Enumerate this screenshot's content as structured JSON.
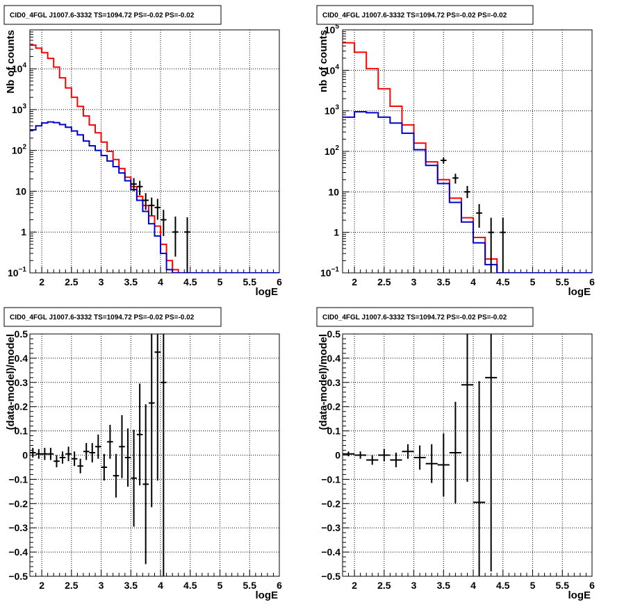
{
  "colors": {
    "data": "#000000",
    "model_total": "#ff0000",
    "model_component": "#0000cc"
  },
  "chart_data": [
    {
      "type": "line",
      "title": "CID0_4FGL J1007.6-3332 TS=1094.72 PS=-0.02 PS=-0.02",
      "xlabel": "logE",
      "ylabel": "Nb of counts",
      "xlim": [
        1.8,
        6.0
      ],
      "ylim": [
        0.1,
        90000
      ],
      "yscale": "log",
      "grid": true,
      "xticks": [
        "2",
        "2.5",
        "3",
        "3.5",
        "4",
        "4.5",
        "5",
        "5.5",
        "6"
      ],
      "yticks": [
        {
          "v": 0.1,
          "base": "10",
          "exp": "−1"
        },
        {
          "v": 1,
          "base": "1",
          "exp": ""
        },
        {
          "v": 10,
          "base": "10",
          "exp": ""
        },
        {
          "v": 100,
          "base": "10",
          "exp": "2"
        },
        {
          "v": 1000,
          "base": "10",
          "exp": "3"
        },
        {
          "v": 10000,
          "base": "10",
          "exp": "4"
        }
      ],
      "bin_edges": [
        1.8,
        1.9,
        2.0,
        2.1,
        2.2,
        2.3,
        2.4,
        2.5,
        2.6,
        2.7,
        2.8,
        2.9,
        3.0,
        3.1,
        3.2,
        3.3,
        3.4,
        3.5,
        3.6,
        3.7,
        3.8,
        3.9,
        4.0,
        4.1,
        4.2,
        4.3,
        4.4,
        4.5,
        4.6,
        4.7,
        4.8,
        4.9,
        5.0,
        5.1,
        5.2,
        5.3,
        5.4,
        5.5,
        5.6,
        5.7,
        5.8,
        5.9,
        6.0
      ],
      "series": [
        {
          "kind": "step",
          "color": "#ff0000",
          "values": [
            38000,
            32000,
            25000,
            18000,
            11000,
            6000,
            3400,
            2000,
            1200,
            700,
            420,
            270,
            160,
            95,
            60,
            36,
            22,
            13,
            7.5,
            4.5,
            2.5,
            1.4,
            0.5,
            0.2,
            0.12,
            0.1,
            0.1,
            0.1,
            0.1,
            0.1,
            0.1,
            0.1,
            0.1,
            0.1,
            0.1,
            0.1,
            0.1,
            0.1,
            0.1,
            0.1,
            0.1,
            0.1
          ]
        },
        {
          "kind": "step",
          "color": "#0000cc",
          "values": [
            320,
            400,
            470,
            500,
            480,
            430,
            370,
            300,
            240,
            170,
            130,
            100,
            75,
            55,
            40,
            28,
            18,
            11,
            6,
            3.2,
            1.6,
            0.8,
            0.3,
            0.12,
            0.1,
            0.1,
            0.1,
            0.1,
            0.1,
            0.1,
            0.1,
            0.1,
            0.1,
            0.1,
            0.1,
            0.1,
            0.1,
            0.1,
            0.1,
            0.1,
            0.1,
            0.1
          ]
        },
        {
          "kind": "points",
          "color": "#000000",
          "points": [
            {
              "x": 3.55,
              "y": 15,
              "lo": 10,
              "hi": 21
            },
            {
              "x": 3.65,
              "y": 13,
              "lo": 8,
              "hi": 18
            },
            {
              "x": 3.75,
              "y": 6,
              "lo": 3.5,
              "hi": 9
            },
            {
              "x": 3.85,
              "y": 4.5,
              "lo": 2.5,
              "hi": 7
            },
            {
              "x": 3.95,
              "y": 4,
              "lo": 2,
              "hi": 6.5
            },
            {
              "x": 4.05,
              "y": 2,
              "lo": 0.8,
              "hi": 3.5
            },
            {
              "x": 4.25,
              "y": 1,
              "lo": 0.25,
              "hi": 2.4
            },
            {
              "x": 4.45,
              "y": 1,
              "lo": 0.1,
              "hi": 2.3
            }
          ]
        }
      ]
    },
    {
      "type": "line",
      "title": "CID0_4FGL J1007.6-3332 TS=1094.72 PS=-0.02 PS=-0.02",
      "xlabel": "logE",
      "ylabel": "nb of counts",
      "xlim": [
        1.8,
        6.0
      ],
      "ylim": [
        0.1,
        100000
      ],
      "yscale": "log",
      "grid": true,
      "xticks": [
        "2",
        "2.5",
        "3",
        "3.5",
        "4",
        "4.5",
        "5",
        "5.5",
        "6"
      ],
      "yticks": [
        {
          "v": 0.1,
          "base": "10",
          "exp": "−1"
        },
        {
          "v": 1,
          "base": "1",
          "exp": ""
        },
        {
          "v": 10,
          "base": "10",
          "exp": ""
        },
        {
          "v": 100,
          "base": "10",
          "exp": "2"
        },
        {
          "v": 1000,
          "base": "10",
          "exp": "3"
        },
        {
          "v": 10000,
          "base": "10",
          "exp": "4"
        },
        {
          "v": 100000,
          "base": "10",
          "exp": "5"
        }
      ],
      "bin_edges": [
        1.8,
        2.0,
        2.2,
        2.4,
        2.6,
        2.8,
        3.0,
        3.2,
        3.4,
        3.6,
        3.8,
        4.0,
        4.2,
        4.4,
        4.6,
        4.8,
        5.0,
        5.2,
        5.4,
        5.6,
        5.8,
        6.0
      ],
      "series": [
        {
          "kind": "step",
          "color": "#ff0000",
          "values": [
            48000,
            28000,
            11000,
            3500,
            1300,
            450,
            160,
            55,
            20,
            7,
            2.3,
            0.75,
            0.22,
            0.1,
            0.1,
            0.1,
            0.1,
            0.1,
            0.1,
            0.1,
            0.1
          ]
        },
        {
          "kind": "step",
          "color": "#0000cc",
          "values": [
            700,
            950,
            900,
            700,
            500,
            280,
            110,
            45,
            16,
            5.5,
            1.8,
            0.55,
            0.16,
            0.1,
            0.1,
            0.1,
            0.1,
            0.1,
            0.1,
            0.1,
            0.1
          ]
        },
        {
          "kind": "points",
          "color": "#000000",
          "points": [
            {
              "x": 3.5,
              "y": 60,
              "lo": 50,
              "hi": 70
            },
            {
              "x": 3.7,
              "y": 22,
              "lo": 16,
              "hi": 28
            },
            {
              "x": 3.9,
              "y": 10,
              "lo": 7,
              "hi": 14
            },
            {
              "x": 4.1,
              "y": 3,
              "lo": 1.3,
              "hi": 5
            },
            {
              "x": 4.3,
              "y": 1,
              "lo": 0.1,
              "hi": 2.3
            },
            {
              "x": 4.5,
              "y": 1,
              "lo": 0.1,
              "hi": 2.3
            }
          ]
        }
      ]
    },
    {
      "type": "scatter",
      "title": "CID0_4FGL J1007.6-3332 TS=1094.72 PS=-0.02 PS=-0.02",
      "xlabel": "logE",
      "ylabel": "(data-model)/model",
      "xlim": [
        1.8,
        6.0
      ],
      "ylim": [
        -0.5,
        0.5
      ],
      "yscale": "linear",
      "grid": true,
      "xticks": [
        "2",
        "2.5",
        "3",
        "3.5",
        "4",
        "4.5",
        "5",
        "5.5",
        "6"
      ],
      "yticks": [
        "−0.5",
        "−0.4",
        "−0.3",
        "−0.2",
        "−0.1",
        "0",
        "0.1",
        "0.2",
        "0.3",
        "0.4",
        "0.5"
      ],
      "xerr": 0.05,
      "points": [
        {
          "x": 1.85,
          "y": 0.01,
          "e": 0.02
        },
        {
          "x": 1.95,
          "y": 0.005,
          "e": 0.02
        },
        {
          "x": 2.05,
          "y": 0.005,
          "e": 0.025
        },
        {
          "x": 2.15,
          "y": 0.005,
          "e": 0.025
        },
        {
          "x": 2.25,
          "y": -0.025,
          "e": 0.025
        },
        {
          "x": 2.35,
          "y": -0.01,
          "e": 0.025
        },
        {
          "x": 2.45,
          "y": 0.005,
          "e": 0.03
        },
        {
          "x": 2.55,
          "y": -0.015,
          "e": 0.03
        },
        {
          "x": 2.65,
          "y": -0.045,
          "e": 0.03
        },
        {
          "x": 2.75,
          "y": 0.015,
          "e": 0.035
        },
        {
          "x": 2.85,
          "y": 0.01,
          "e": 0.04
        },
        {
          "x": 2.95,
          "y": 0.035,
          "e": 0.05
        },
        {
          "x": 3.05,
          "y": -0.05,
          "e": 0.055
        },
        {
          "x": 3.15,
          "y": 0.055,
          "e": 0.07
        },
        {
          "x": 3.25,
          "y": -0.085,
          "e": 0.09
        },
        {
          "x": 3.35,
          "y": 0.035,
          "e": 0.13
        },
        {
          "x": 3.45,
          "y": -0.01,
          "e": 0.12
        },
        {
          "x": 3.55,
          "y": -0.095,
          "e": 0.2
        },
        {
          "x": 3.65,
          "y": 0.085,
          "e": 0.21
        },
        {
          "x": 3.75,
          "y": -0.12,
          "e": 0.33
        },
        {
          "x": 3.85,
          "y": 0.215,
          "e": 0.43
        },
        {
          "x": 3.95,
          "y": 0.425,
          "e": 0.53
        },
        {
          "x": 4.05,
          "y": 0.3,
          "e": 0.8
        }
      ]
    },
    {
      "type": "scatter",
      "title": "CID0_4FGL J1007.6-3332 TS=1094.72 PS=-0.02 PS=-0.02",
      "xlabel": "logE",
      "ylabel": "(data-model)/model",
      "xlim": [
        1.8,
        6.0
      ],
      "ylim": [
        -0.5,
        0.5
      ],
      "yscale": "linear",
      "grid": true,
      "xticks": [
        "2",
        "2.5",
        "3",
        "3.5",
        "4",
        "4.5",
        "5",
        "5.5",
        "6"
      ],
      "yticks": [
        "−0.5",
        "−0.4",
        "−0.3",
        "−0.2",
        "−0.1",
        "0",
        "0.1",
        "0.2",
        "0.3",
        "0.4",
        "0.5"
      ],
      "xerr": 0.1,
      "points": [
        {
          "x": 1.9,
          "y": 0.005,
          "e": 0.01
        },
        {
          "x": 2.1,
          "y": 0.0,
          "e": 0.015
        },
        {
          "x": 2.3,
          "y": -0.02,
          "e": 0.02
        },
        {
          "x": 2.5,
          "y": 0.0,
          "e": 0.025
        },
        {
          "x": 2.7,
          "y": -0.02,
          "e": 0.03
        },
        {
          "x": 2.9,
          "y": 0.015,
          "e": 0.03
        },
        {
          "x": 3.1,
          "y": -0.01,
          "e": 0.05
        },
        {
          "x": 3.3,
          "y": -0.035,
          "e": 0.08
        },
        {
          "x": 3.5,
          "y": -0.04,
          "e": 0.13
        },
        {
          "x": 3.7,
          "y": 0.01,
          "e": 0.21
        },
        {
          "x": 3.9,
          "y": 0.29,
          "e": 0.4
        },
        {
          "x": 4.1,
          "y": -0.195,
          "e": 0.5
        },
        {
          "x": 4.3,
          "y": 0.32,
          "e": 0.8
        }
      ]
    }
  ]
}
